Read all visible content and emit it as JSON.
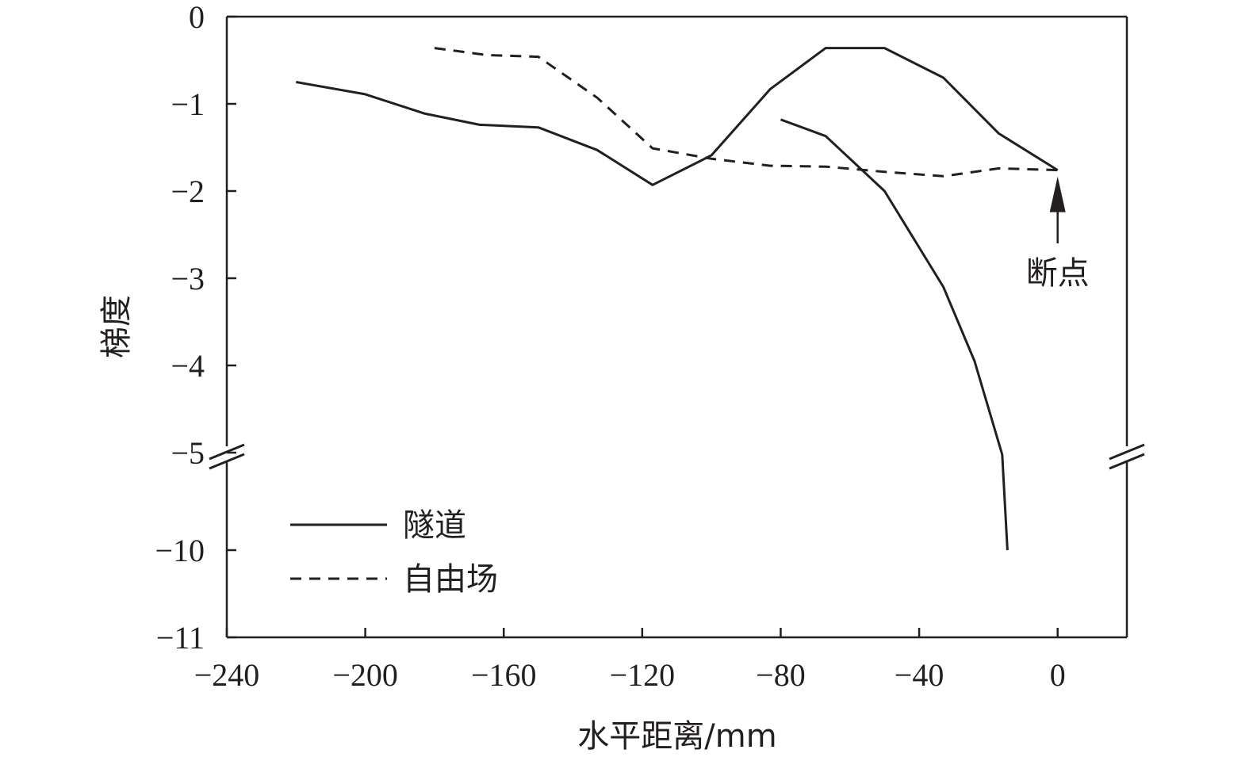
{
  "chart_data": {
    "type": "line",
    "xlabel": "水平距离/mm",
    "ylabel": "梯度",
    "xlim": [
      -240,
      20
    ],
    "ylim": [
      -11,
      0
    ],
    "y_axis_break": {
      "between": [
        -10,
        -5
      ],
      "marker": "double-slash"
    },
    "x_ticks": [
      -240,
      -200,
      -160,
      -120,
      -80,
      -40,
      0
    ],
    "x_tick_labels": [
      "−240",
      "−200",
      "−160",
      "−120",
      "−80",
      "−40",
      "0"
    ],
    "y_ticks": [
      0,
      -1,
      -2,
      -3,
      -4,
      -5,
      -10,
      -11
    ],
    "y_tick_labels": [
      "0",
      "−1",
      "−2",
      "−3",
      "−4",
      "−5",
      "−10",
      "−11"
    ],
    "legend_position": "bottom-left",
    "series": [
      {
        "name": "隧道",
        "style": "solid",
        "x": [
          -220,
          -200,
          -183,
          -167,
          -150,
          -133,
          -117,
          -100,
          -83,
          -67,
          -50,
          -33,
          -17,
          0
        ],
        "values": [
          -0.75,
          -0.89,
          -1.11,
          -1.24,
          -1.27,
          -1.53,
          -1.93,
          -1.59,
          -0.83,
          -0.36,
          -0.36,
          -0.7,
          -1.34,
          -1.76
        ]
      },
      {
        "name": "",
        "style": "solid",
        "x": [
          -80,
          -67,
          -50,
          -33,
          -24,
          -16,
          -14.5
        ],
        "values": [
          -1.18,
          -1.37,
          -2.0,
          -3.1,
          -3.95,
          -5.1,
          -10.0
        ]
      },
      {
        "name": "自由场",
        "style": "dashed",
        "x": [
          -180,
          -165,
          -150,
          -133,
          -117,
          -100,
          -83,
          -67,
          -50,
          -33,
          -17,
          0
        ],
        "values": [
          -0.36,
          -0.44,
          -0.46,
          -0.93,
          -1.51,
          -1.63,
          -1.71,
          -1.72,
          -1.78,
          -1.83,
          -1.74,
          -1.76
        ]
      }
    ],
    "annotations": [
      {
        "text": "断点",
        "x": 0,
        "y": -1.76,
        "arrow": "up"
      }
    ],
    "colors": {
      "line": "#231f20",
      "axis": "#231f20"
    }
  }
}
